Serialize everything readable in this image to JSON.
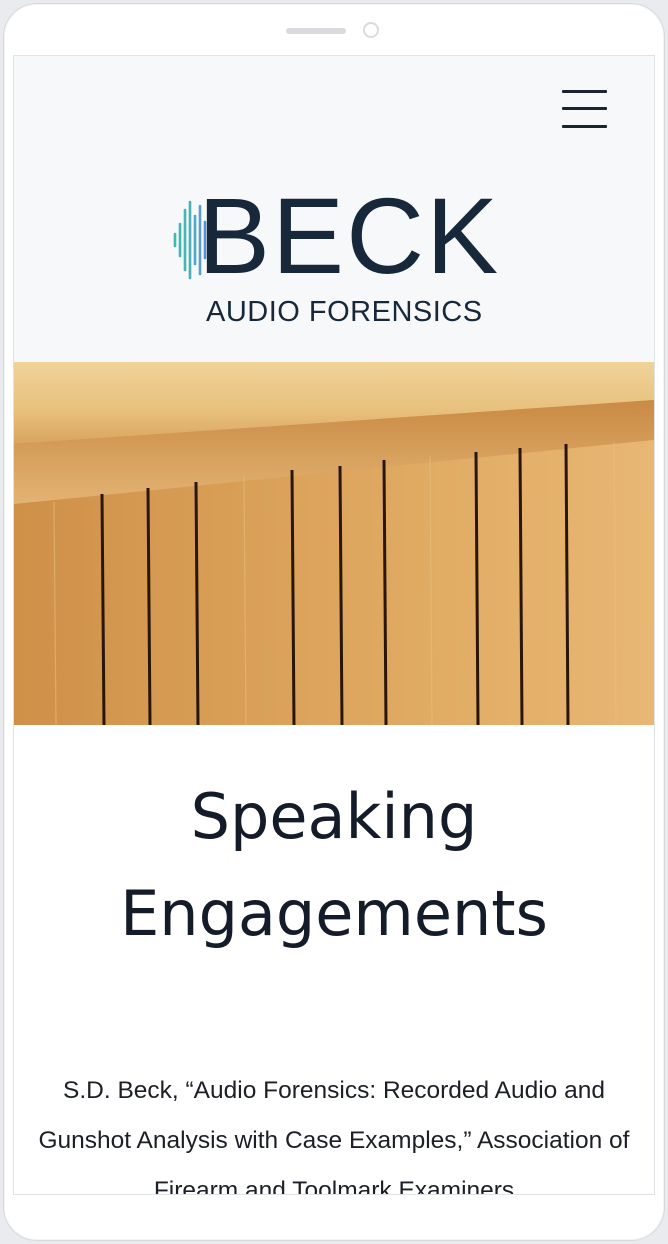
{
  "header": {
    "menu_icon": "hamburger-menu-icon"
  },
  "logo": {
    "word": "BECK",
    "tagline": "AUDIO FORENSICS",
    "wave_icon": "sound-wave-icon",
    "colors": {
      "text": "#16283a",
      "wave_teal": "#3fb8b2",
      "wave_blue": "#5b8fd1"
    }
  },
  "hero": {
    "image": "wood-acoustic-panel"
  },
  "main": {
    "title": "Speaking Engagements",
    "body": "S.D. Beck, “Audio Forensics: Recorded Audio and Gunshot Analysis with Case Examples,” Association of Firearm and Toolmark Examiners"
  }
}
